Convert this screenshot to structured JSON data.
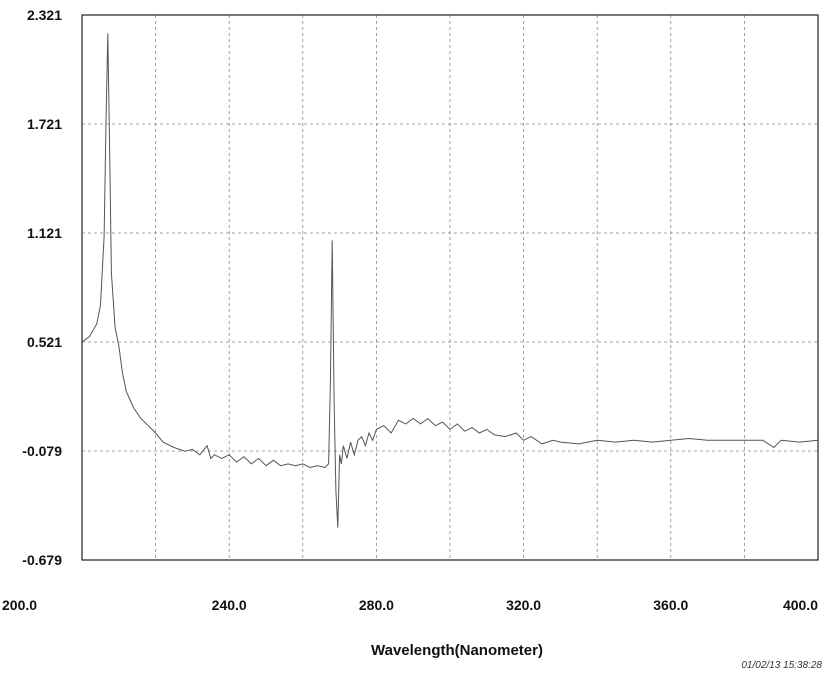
{
  "chart_data": {
    "type": "line",
    "title": "",
    "xlabel": "Wavelength(Nanometer)",
    "ylabel": "",
    "xlim": [
      200,
      400
    ],
    "ylim": [
      -0.679,
      2.321
    ],
    "x_ticks": [
      "200.0",
      "240.0",
      "280.0",
      "320.0",
      "360.0",
      "400.0"
    ],
    "y_ticks": [
      "2.321",
      "1.721",
      "1.121",
      "0.521",
      "-0.079",
      "-0.679"
    ],
    "grid": true,
    "grid_style": "dashed",
    "line_color": "#555555",
    "series": [
      {
        "x": [
          200,
          202,
          204,
          205,
          206,
          206.5,
          207,
          207.5,
          208,
          209,
          210,
          211,
          212,
          214,
          216,
          218,
          220,
          222,
          225,
          228,
          230,
          232,
          234,
          235,
          236,
          238,
          240,
          242,
          244,
          246,
          248,
          250,
          252,
          254,
          256,
          258,
          260,
          262,
          264,
          266,
          267,
          267.5,
          268,
          268.5,
          269,
          269.5,
          270,
          270.5,
          271,
          272,
          273,
          274,
          275,
          276,
          277,
          278,
          279,
          280,
          282,
          284,
          286,
          288,
          290,
          292,
          294,
          296,
          298,
          300,
          302,
          304,
          306,
          308,
          310,
          312,
          315,
          318,
          320,
          322,
          325,
          328,
          330,
          335,
          340,
          345,
          350,
          355,
          360,
          365,
          370,
          375,
          380,
          385,
          388,
          390,
          395,
          400
        ],
        "y": [
          0.52,
          0.55,
          0.62,
          0.72,
          1.1,
          1.7,
          2.22,
          1.6,
          0.9,
          0.6,
          0.5,
          0.35,
          0.25,
          0.16,
          0.1,
          0.06,
          0.02,
          -0.03,
          -0.06,
          -0.08,
          -0.07,
          -0.1,
          -0.05,
          -0.12,
          -0.1,
          -0.12,
          -0.1,
          -0.14,
          -0.11,
          -0.15,
          -0.12,
          -0.16,
          -0.13,
          -0.16,
          -0.15,
          -0.16,
          -0.15,
          -0.17,
          -0.16,
          -0.17,
          -0.15,
          0.3,
          1.08,
          0.2,
          -0.3,
          -0.5,
          -0.1,
          -0.15,
          -0.05,
          -0.12,
          -0.03,
          -0.1,
          -0.02,
          0.0,
          -0.05,
          0.02,
          -0.02,
          0.04,
          0.06,
          0.02,
          0.09,
          0.07,
          0.1,
          0.07,
          0.1,
          0.06,
          0.08,
          0.04,
          0.07,
          0.03,
          0.05,
          0.02,
          0.04,
          0.01,
          0.0,
          0.02,
          -0.02,
          0.0,
          -0.04,
          -0.02,
          -0.03,
          -0.04,
          -0.02,
          -0.03,
          -0.02,
          -0.03,
          -0.02,
          -0.01,
          -0.02,
          -0.02,
          -0.02,
          -0.02,
          -0.06,
          -0.02,
          -0.03,
          -0.02
        ]
      }
    ]
  },
  "footer": {
    "timestamp": "01/02/13 15:38:28"
  }
}
